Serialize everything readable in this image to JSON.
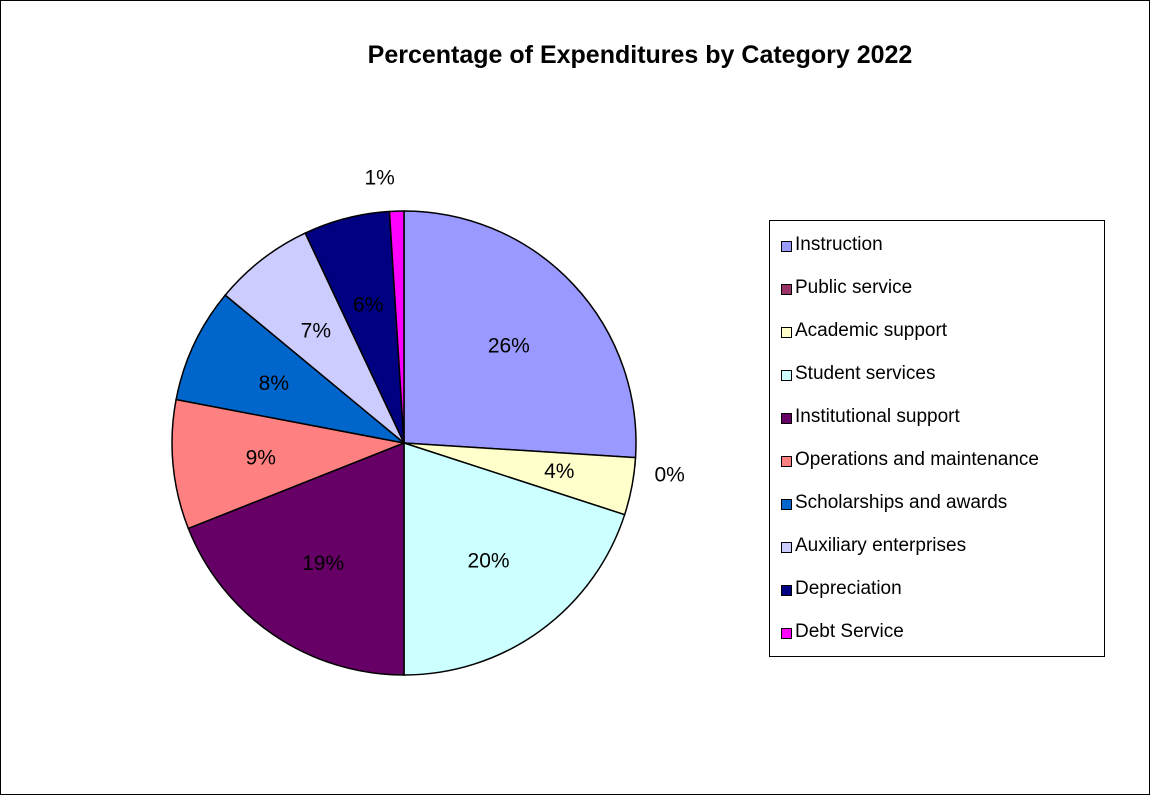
{
  "chart_data": {
    "type": "pie",
    "title": "Percentage of Expenditures by Category 2022",
    "legend_position": "right",
    "categories": [
      "Instruction",
      "Public service",
      "Academic support",
      "Student services",
      "Institutional support",
      "Operations and maintenance",
      "Scholarships and awards",
      "Auxiliary enterprises",
      "Depreciation",
      "Debt Service"
    ],
    "values": [
      26,
      0,
      4,
      20,
      19,
      9,
      8,
      7,
      6,
      1
    ],
    "data_labels": [
      "26%",
      "0%",
      "4%",
      "20%",
      "19%",
      "9%",
      "8%",
      "7%",
      "6%",
      "1%"
    ],
    "colors": [
      "#9999ff",
      "#993366",
      "#ffffcc",
      "#ccffff",
      "#660066",
      "#ff8080",
      "#0066cc",
      "#ccccff",
      "#000080",
      "#ff00ff"
    ]
  }
}
